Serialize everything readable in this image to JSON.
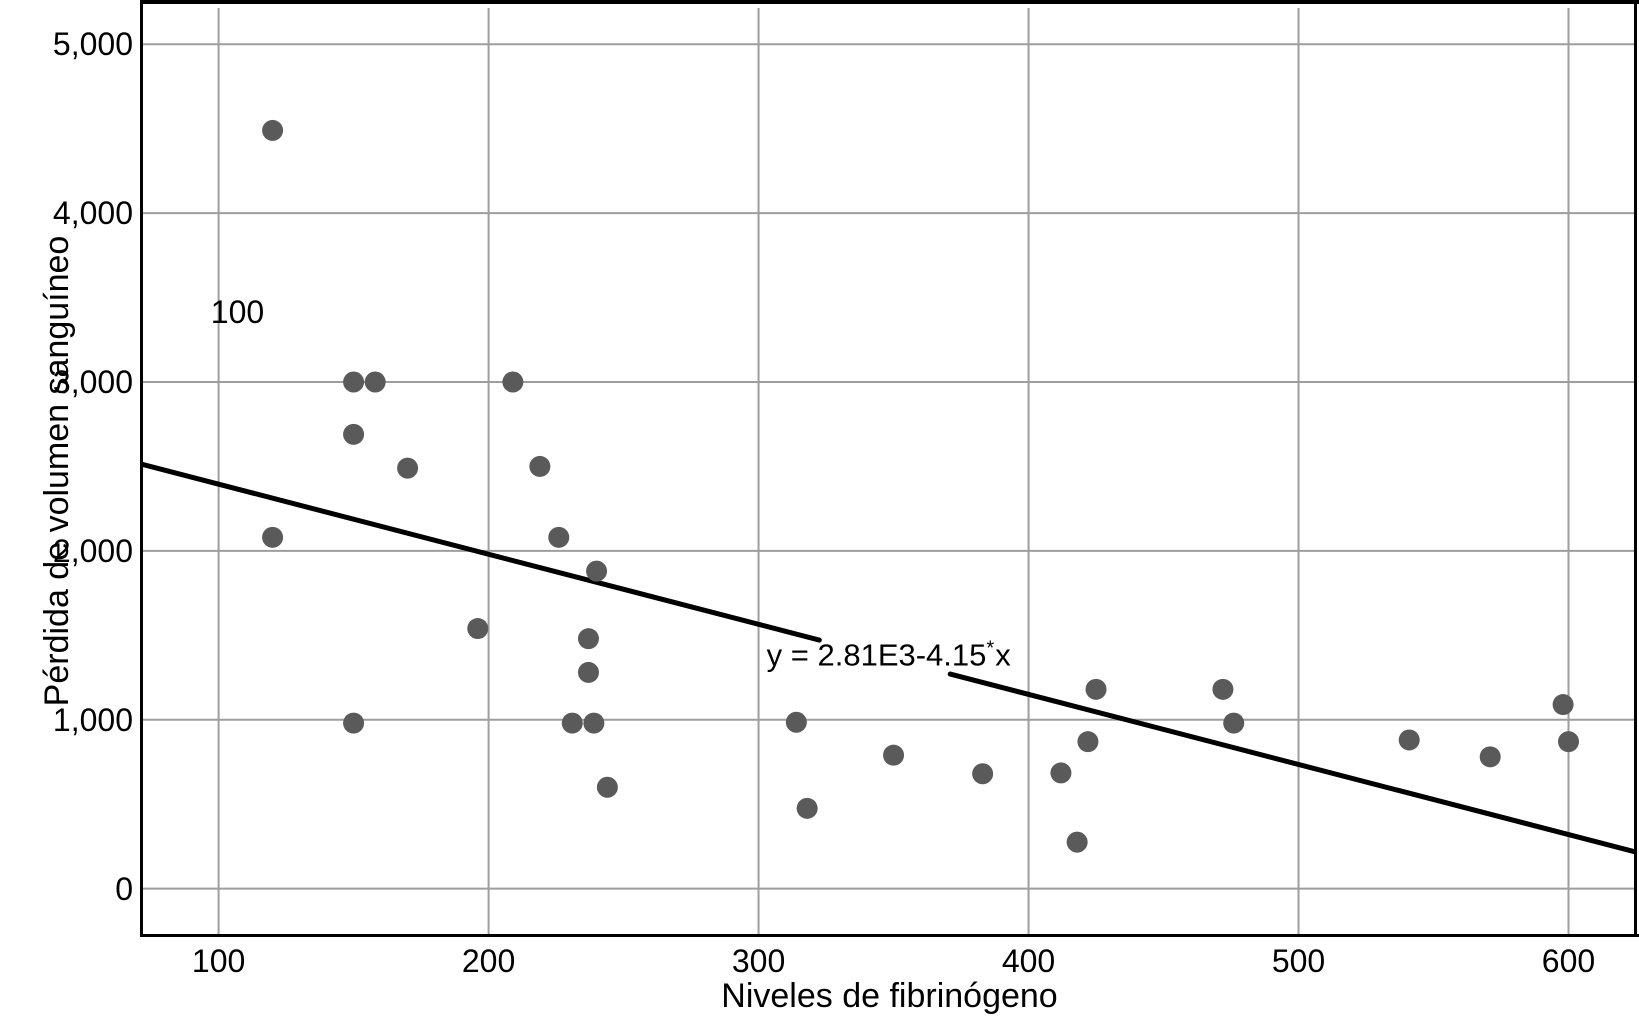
{
  "figure": {
    "xlabel": "Niveles de fibrinógeno",
    "ylabel": "Pérdida de volumen sanguíneo"
  },
  "chart_data": {
    "type": "scatter",
    "title": "",
    "xlabel": "Niveles de fibrinógeno",
    "ylabel": "Pérdida de volumen sanguíneo",
    "grid": true,
    "xlim": [
      72,
      625
    ],
    "ylim": [
      -275,
      5215
    ],
    "x_ticks": [
      100,
      200,
      300,
      400,
      500,
      600
    ],
    "x_tick_labels": [
      "100",
      "200",
      "300",
      "400",
      "500",
      "600"
    ],
    "y_ticks": [
      0,
      1000,
      2000,
      3000,
      4000,
      5000
    ],
    "y_tick_labels": [
      "0",
      "1,000",
      "2,000",
      "3,000",
      "4,000",
      "5,000"
    ],
    "points": [
      [
        120,
        4490
      ],
      [
        150,
        3000
      ],
      [
        158,
        3000
      ],
      [
        209,
        3000
      ],
      [
        150,
        2690
      ],
      [
        170,
        2490
      ],
      [
        219,
        2500
      ],
      [
        120,
        2080
      ],
      [
        226,
        2080
      ],
      [
        240,
        1880
      ],
      [
        196,
        1540
      ],
      [
        237,
        1480
      ],
      [
        237,
        1280
      ],
      [
        150,
        980
      ],
      [
        231,
        980
      ],
      [
        239,
        980
      ],
      [
        244,
        600
      ],
      [
        314,
        985
      ],
      [
        318,
        475
      ],
      [
        350,
        790
      ],
      [
        383,
        680
      ],
      [
        412,
        685
      ],
      [
        422,
        870
      ],
      [
        418,
        275
      ],
      [
        425,
        1180
      ],
      [
        472,
        1180
      ],
      [
        476,
        980
      ],
      [
        541,
        880
      ],
      [
        571,
        780
      ],
      [
        598,
        1090
      ],
      [
        600,
        870
      ]
    ],
    "regression": {
      "equation_label": "y = 2.81E3-4.15*x",
      "label_main": "y = 2.81E3-4.15",
      "label_sup": "*",
      "label_tail": "x",
      "intercept": 2810,
      "slope": -4.15,
      "segments": [
        [
          72,
          322.5
        ],
        [
          371,
          625
        ]
      ],
      "label_anchor": {
        "x": 303,
        "y": 1400
      }
    },
    "annotations": [
      {
        "text": "100",
        "x": 107,
        "y": 3415
      }
    ],
    "colors": {
      "point": "#5a5a5a",
      "line": "#000000",
      "grid": "#9e9e9e",
      "frame": "#000000",
      "background": "#ffffff",
      "text": "#000000"
    }
  }
}
